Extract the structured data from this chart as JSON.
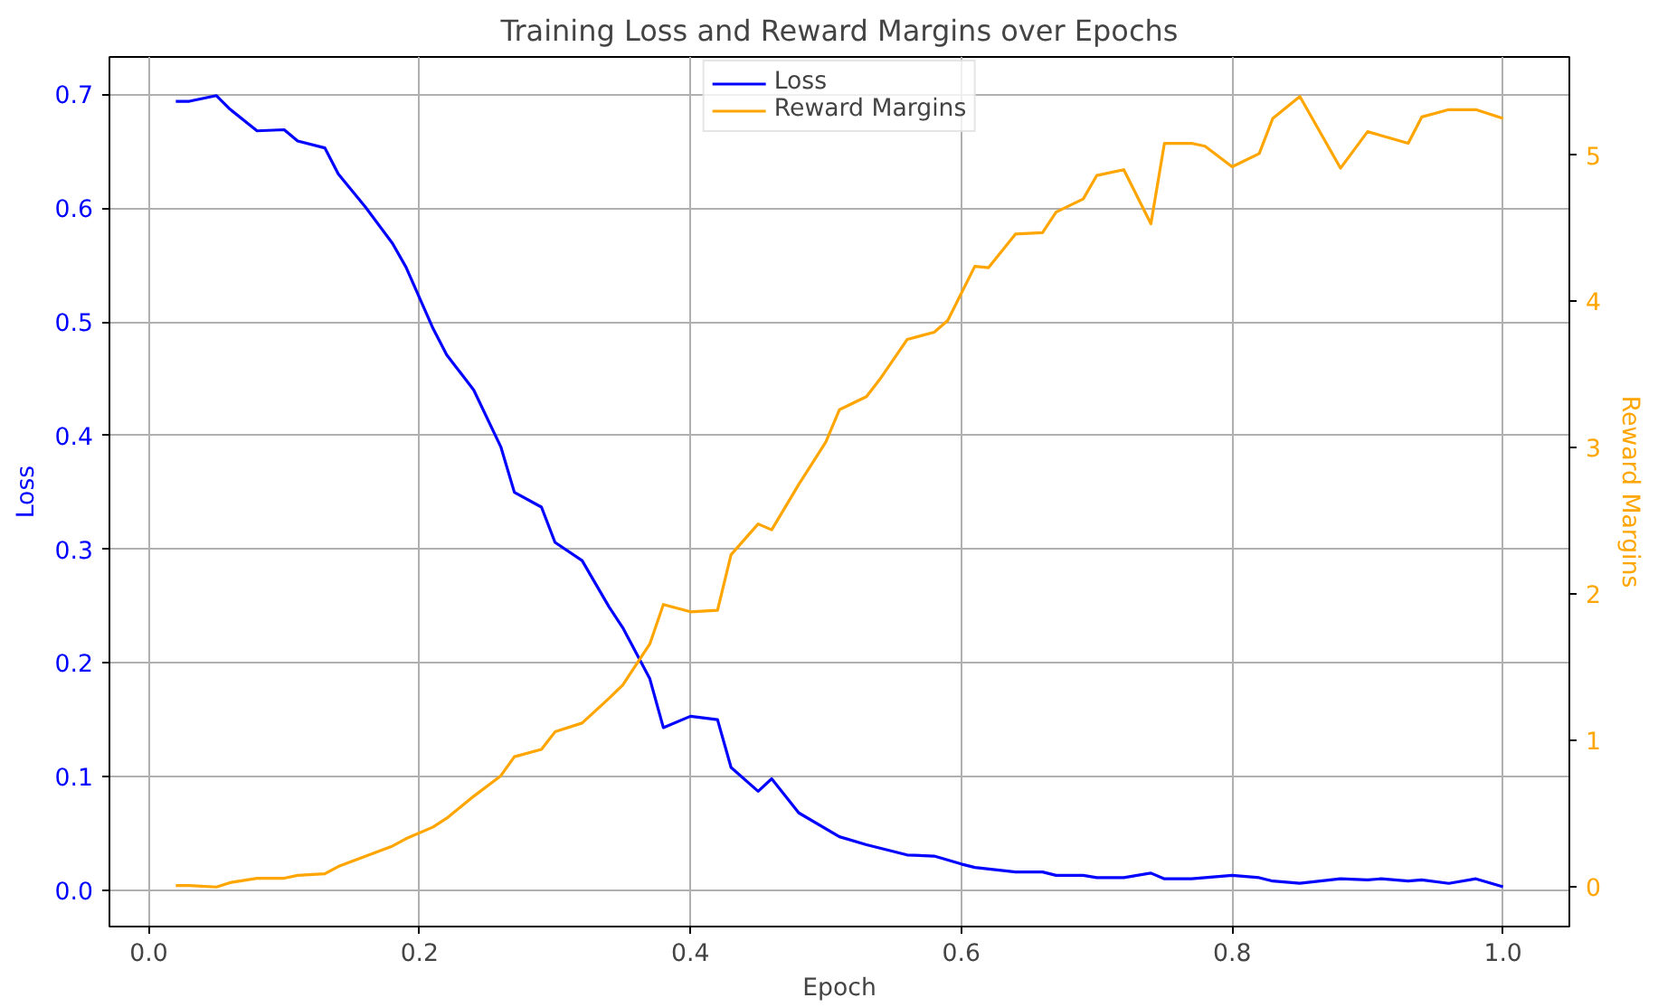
{
  "chart_data": {
    "type": "line",
    "title": "Training Loss and Reward Margins over Epochs",
    "xlabel": "Epoch",
    "ylabel": "Loss",
    "y2label": "Reward Margins",
    "xlim": [
      -0.029,
      1.049
    ],
    "xticks": [
      {
        "value": 0,
        "label": "0.0"
      },
      0.2,
      0.4,
      0.6,
      0.8,
      {
        "value": 1,
        "label": "1.0"
      }
    ],
    "ylim": [
      -0.032,
      0.733
    ],
    "yticks": [
      {
        "value": 0,
        "label": "0.0"
      },
      0.1,
      0.2,
      0.3,
      0.4,
      0.5,
      0.6,
      0.7
    ],
    "y2lim": [
      -0.27,
      5.67
    ],
    "y2ticks": [
      0,
      1,
      2,
      3,
      4,
      5
    ],
    "grid": true,
    "legend": "top center",
    "line_style": "solid",
    "series": [
      {
        "name": "Loss",
        "color": "#0000ff",
        "x": [
          0.02,
          0.03,
          0.05,
          0.06,
          0.08,
          0.1,
          0.11,
          0.13,
          0.14,
          0.16,
          0.18,
          0.19,
          0.21,
          0.22,
          0.24,
          0.26,
          0.27,
          0.29,
          0.3,
          0.32,
          0.34,
          0.35,
          0.37,
          0.38,
          0.4,
          0.42,
          0.43,
          0.45,
          0.46,
          0.48,
          0.51,
          0.53,
          0.56,
          0.58,
          0.6,
          0.61,
          0.64,
          0.66,
          0.67,
          0.69,
          0.7,
          0.72,
          0.74,
          0.75,
          0.77,
          0.8,
          0.82,
          0.83,
          0.85,
          0.88,
          0.9,
          0.91,
          0.93,
          0.94,
          0.96,
          0.98,
          1.0
        ],
        "values": [
          0.694,
          0.694,
          0.699,
          0.687,
          0.668,
          0.669,
          0.659,
          0.653,
          0.63,
          0.601,
          0.569,
          0.548,
          0.494,
          0.471,
          0.44,
          0.39,
          0.35,
          0.337,
          0.306,
          0.29,
          0.249,
          0.231,
          0.186,
          0.143,
          0.153,
          0.15,
          0.108,
          0.087,
          0.098,
          0.068,
          0.047,
          0.04,
          0.031,
          0.03,
          0.023,
          0.02,
          0.016,
          0.016,
          0.013,
          0.013,
          0.011,
          0.011,
          0.015,
          0.01,
          0.01,
          0.013,
          0.011,
          0.008,
          0.006,
          0.01,
          0.009,
          0.01,
          0.008,
          0.009,
          0.006,
          0.01,
          0.003
        ]
      },
      {
        "name": "Reward Margins",
        "color": "#ffa500",
        "axis": "y2",
        "x": [
          0.02,
          0.03,
          0.05,
          0.06,
          0.08,
          0.1,
          0.11,
          0.13,
          0.14,
          0.16,
          0.18,
          0.19,
          0.21,
          0.22,
          0.24,
          0.26,
          0.27,
          0.29,
          0.3,
          0.32,
          0.34,
          0.35,
          0.37,
          0.38,
          0.4,
          0.42,
          0.43,
          0.45,
          0.46,
          0.48,
          0.5,
          0.51,
          0.53,
          0.54,
          0.56,
          0.58,
          0.59,
          0.61,
          0.62,
          0.64,
          0.66,
          0.67,
          0.69,
          0.7,
          0.72,
          0.74,
          0.75,
          0.77,
          0.78,
          0.8,
          0.82,
          0.83,
          0.85,
          0.88,
          0.9,
          0.93,
          0.94,
          0.96,
          0.98,
          1.0
        ],
        "values": [
          0.01,
          0.01,
          0.0,
          0.03,
          0.06,
          0.06,
          0.08,
          0.09,
          0.14,
          0.21,
          0.28,
          0.33,
          0.41,
          0.47,
          0.62,
          0.76,
          0.89,
          0.94,
          1.06,
          1.12,
          1.29,
          1.38,
          1.66,
          1.93,
          1.88,
          1.89,
          2.27,
          2.48,
          2.44,
          2.75,
          3.04,
          3.26,
          3.35,
          3.47,
          3.74,
          3.79,
          3.87,
          4.24,
          4.23,
          4.46,
          4.47,
          4.61,
          4.7,
          4.86,
          4.9,
          4.53,
          5.08,
          5.08,
          5.06,
          4.92,
          5.01,
          5.25,
          5.4,
          4.91,
          5.16,
          5.08,
          5.26,
          5.31,
          5.31,
          5.25
        ]
      }
    ]
  }
}
